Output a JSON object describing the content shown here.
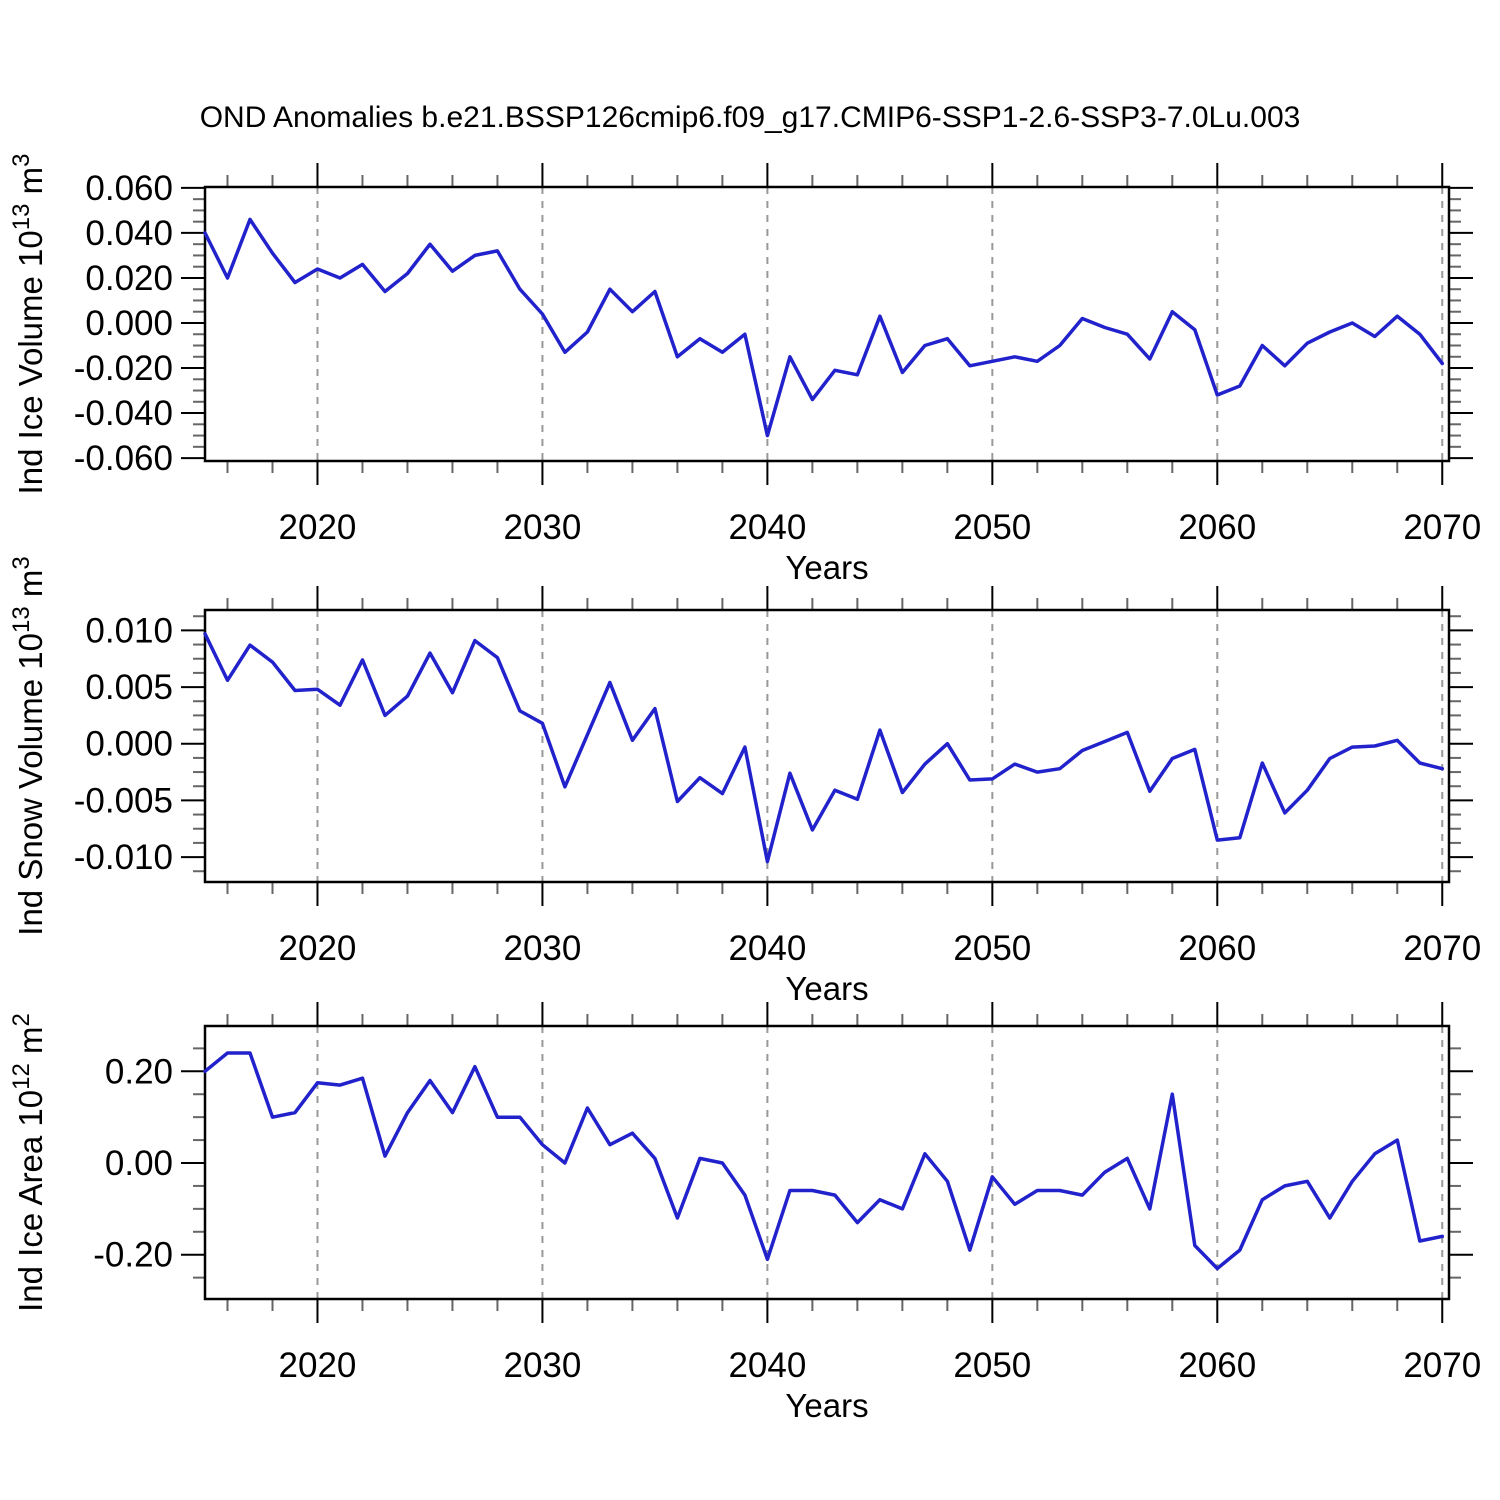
{
  "figure": {
    "title": "OND Anomalies b.e21.BSSP126cmip6.f09_g17.CMIP6-SSP1-2.6-SSP3-7.0Lu.003",
    "background_color": "#ffffff",
    "line_color": "#2222cc",
    "gridline_color": "#999999",
    "axis_color": "#000000",
    "minor_tick_color": "#666666"
  },
  "chart_data": [
    {
      "type": "line",
      "name": "ind-ice-volume",
      "ylabel": "Ind Ice Volume 10^13 m^3",
      "ylabel_parts": [
        {
          "t": "Ind Ice Volume 10"
        },
        {
          "t": "13",
          "sup": true
        },
        {
          "t": " m"
        },
        {
          "t": "3",
          "sup": true
        }
      ],
      "xlabel": "Years",
      "xlim": [
        2015,
        2070.3
      ],
      "ylim": [
        -0.0613,
        0.0604
      ],
      "grid": "x-dashed",
      "legend": "none",
      "xticks": {
        "values": [
          2020,
          2030,
          2040,
          2050,
          2060,
          2070
        ],
        "labels": [
          "2020",
          "2030",
          "2040",
          "2050",
          "2060",
          "2070"
        ],
        "minor_step": 2
      },
      "yticks": {
        "values": [
          0.06,
          0.04,
          0.02,
          0.0,
          -0.02,
          -0.04,
          -0.06
        ],
        "labels": [
          "0.060",
          "0.040",
          "0.020",
          "0.000",
          "-0.020",
          "-0.040",
          "-0.060"
        ],
        "minor_step": 0.005
      },
      "x": [
        2015,
        2016,
        2017,
        2018,
        2019,
        2020,
        2021,
        2022,
        2023,
        2024,
        2025,
        2026,
        2027,
        2028,
        2029,
        2030,
        2031,
        2032,
        2033,
        2034,
        2035,
        2036,
        2037,
        2038,
        2039,
        2040,
        2041,
        2042,
        2043,
        2044,
        2045,
        2046,
        2047,
        2048,
        2049,
        2050,
        2051,
        2052,
        2053,
        2054,
        2055,
        2056,
        2057,
        2058,
        2059,
        2060,
        2061,
        2062,
        2063,
        2064,
        2065,
        2066,
        2067,
        2068,
        2069,
        2070
      ],
      "values": [
        0.04,
        0.02,
        0.046,
        0.031,
        0.018,
        0.024,
        0.02,
        0.026,
        0.014,
        0.022,
        0.035,
        0.023,
        0.03,
        0.032,
        0.015,
        0.004,
        -0.013,
        -0.004,
        0.015,
        0.005,
        0.014,
        -0.015,
        -0.007,
        -0.013,
        -0.005,
        -0.05,
        -0.015,
        -0.034,
        -0.021,
        -0.023,
        0.003,
        -0.022,
        -0.01,
        -0.007,
        -0.019,
        -0.017,
        -0.015,
        -0.017,
        -0.01,
        0.002,
        -0.002,
        -0.005,
        -0.016,
        0.005,
        -0.003,
        -0.032,
        -0.028,
        -0.01,
        -0.019,
        -0.009,
        -0.004,
        0.0,
        -0.006,
        0.003,
        -0.005,
        -0.018
      ]
    },
    {
      "type": "line",
      "name": "ind-snow-volume",
      "ylabel": "Ind Snow Volume 10^13 m^3",
      "ylabel_parts": [
        {
          "t": "Ind Snow Volume 10"
        },
        {
          "t": "13",
          "sup": true
        },
        {
          "t": " m"
        },
        {
          "t": "3",
          "sup": true
        }
      ],
      "xlabel": "Years",
      "xlim": [
        2015,
        2070.3
      ],
      "ylim": [
        -0.0122,
        0.0118
      ],
      "grid": "x-dashed",
      "legend": "none",
      "xticks": {
        "values": [
          2020,
          2030,
          2040,
          2050,
          2060,
          2070
        ],
        "labels": [
          "2020",
          "2030",
          "2040",
          "2050",
          "2060",
          "2070"
        ],
        "minor_step": 2
      },
      "yticks": {
        "values": [
          0.01,
          0.005,
          0.0,
          -0.005,
          -0.01
        ],
        "labels": [
          "0.010",
          "0.005",
          "0.000",
          "-0.005",
          "-0.010"
        ],
        "minor_step": 0.00125
      },
      "x": [
        2015,
        2016,
        2017,
        2018,
        2019,
        2020,
        2021,
        2022,
        2023,
        2024,
        2025,
        2026,
        2027,
        2028,
        2029,
        2030,
        2031,
        2032,
        2033,
        2034,
        2035,
        2036,
        2037,
        2038,
        2039,
        2040,
        2041,
        2042,
        2043,
        2044,
        2045,
        2046,
        2047,
        2048,
        2049,
        2050,
        2051,
        2052,
        2053,
        2054,
        2055,
        2056,
        2057,
        2058,
        2059,
        2060,
        2061,
        2062,
        2063,
        2064,
        2065,
        2066,
        2067,
        2068,
        2069,
        2070
      ],
      "values": [
        0.0097,
        0.0056,
        0.0087,
        0.0072,
        0.0047,
        0.0048,
        0.0034,
        0.0074,
        0.0025,
        0.0042,
        0.008,
        0.0045,
        0.0091,
        0.0076,
        0.0029,
        0.0018,
        -0.0038,
        0.0008,
        0.0054,
        0.0003,
        0.0031,
        -0.0051,
        -0.003,
        -0.0044,
        -0.0003,
        -0.0104,
        -0.0026,
        -0.0076,
        -0.0041,
        -0.0049,
        0.0012,
        -0.0043,
        -0.0018,
        0.0,
        -0.0032,
        -0.0031,
        -0.0018,
        -0.0025,
        -0.0022,
        -0.0006,
        0.0002,
        0.001,
        -0.0042,
        -0.0013,
        -0.0005,
        -0.0085,
        -0.0083,
        -0.0017,
        -0.0061,
        -0.0041,
        -0.0013,
        -0.0003,
        -0.0002,
        0.0003,
        -0.0017,
        -0.0022
      ]
    },
    {
      "type": "line",
      "name": "ind-ice-area",
      "ylabel": "Ind Ice Area 10^12 m^2",
      "ylabel_parts": [
        {
          "t": "Ind Ice Area 10"
        },
        {
          "t": "12",
          "sup": true
        },
        {
          "t": " m"
        },
        {
          "t": "2",
          "sup": true
        }
      ],
      "xlabel": "Years",
      "xlim": [
        2015,
        2070.3
      ],
      "ylim": [
        -0.2966,
        0.2988
      ],
      "grid": "x-dashed",
      "legend": "none",
      "xticks": {
        "values": [
          2020,
          2030,
          2040,
          2050,
          2060,
          2070
        ],
        "labels": [
          "2020",
          "2030",
          "2040",
          "2050",
          "2060",
          "2070"
        ],
        "minor_step": 2
      },
      "yticks": {
        "values": [
          0.2,
          0.0,
          -0.2
        ],
        "labels": [
          "0.20",
          "0.00",
          "-0.20"
        ],
        "minor_step": 0.05
      },
      "x": [
        2015,
        2016,
        2017,
        2018,
        2019,
        2020,
        2021,
        2022,
        2023,
        2024,
        2025,
        2026,
        2027,
        2028,
        2029,
        2030,
        2031,
        2032,
        2033,
        2034,
        2035,
        2036,
        2037,
        2038,
        2039,
        2040,
        2041,
        2042,
        2043,
        2044,
        2045,
        2046,
        2047,
        2048,
        2049,
        2050,
        2051,
        2052,
        2053,
        2054,
        2055,
        2056,
        2057,
        2058,
        2059,
        2060,
        2061,
        2062,
        2063,
        2064,
        2065,
        2066,
        2067,
        2068,
        2069,
        2070
      ],
      "values": [
        0.2,
        0.24,
        0.24,
        0.1,
        0.11,
        0.175,
        0.17,
        0.185,
        0.015,
        0.11,
        0.18,
        0.11,
        0.21,
        0.1,
        0.1,
        0.04,
        0.0,
        0.12,
        0.04,
        0.065,
        0.01,
        -0.12,
        0.01,
        0.0,
        -0.07,
        -0.21,
        -0.06,
        -0.06,
        -0.07,
        -0.13,
        -0.08,
        -0.1,
        0.02,
        -0.04,
        -0.19,
        -0.03,
        -0.09,
        -0.06,
        -0.06,
        -0.07,
        -0.02,
        0.01,
        -0.1,
        0.15,
        -0.18,
        -0.23,
        -0.19,
        -0.08,
        -0.05,
        -0.04,
        -0.12,
        -0.04,
        0.02,
        0.05,
        -0.17,
        -0.16
      ]
    }
  ]
}
